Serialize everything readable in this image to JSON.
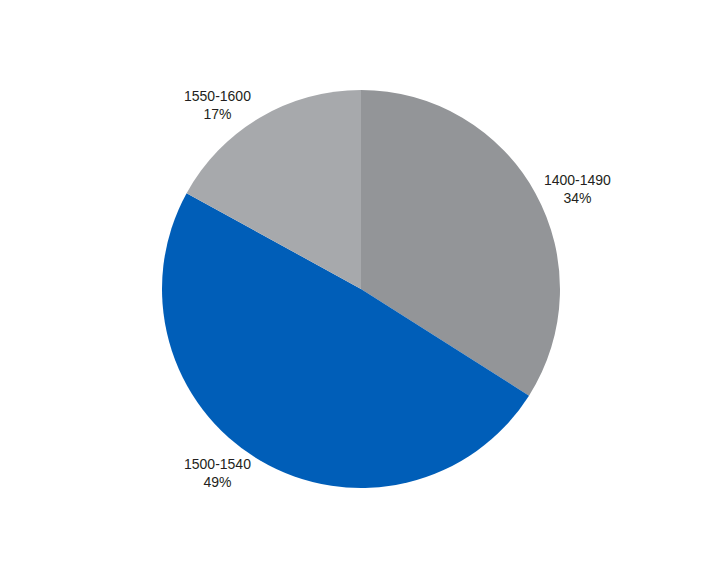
{
  "chart_data": {
    "type": "pie",
    "categories": [
      "1400-1490",
      "1500-1540",
      "1550-1600"
    ],
    "values": [
      34,
      49,
      17
    ],
    "value_labels": [
      "34%",
      "49%",
      "17%"
    ],
    "colors": [
      "#939598",
      "#005eb8",
      "#a7a9ac"
    ],
    "data_labels": true
  }
}
